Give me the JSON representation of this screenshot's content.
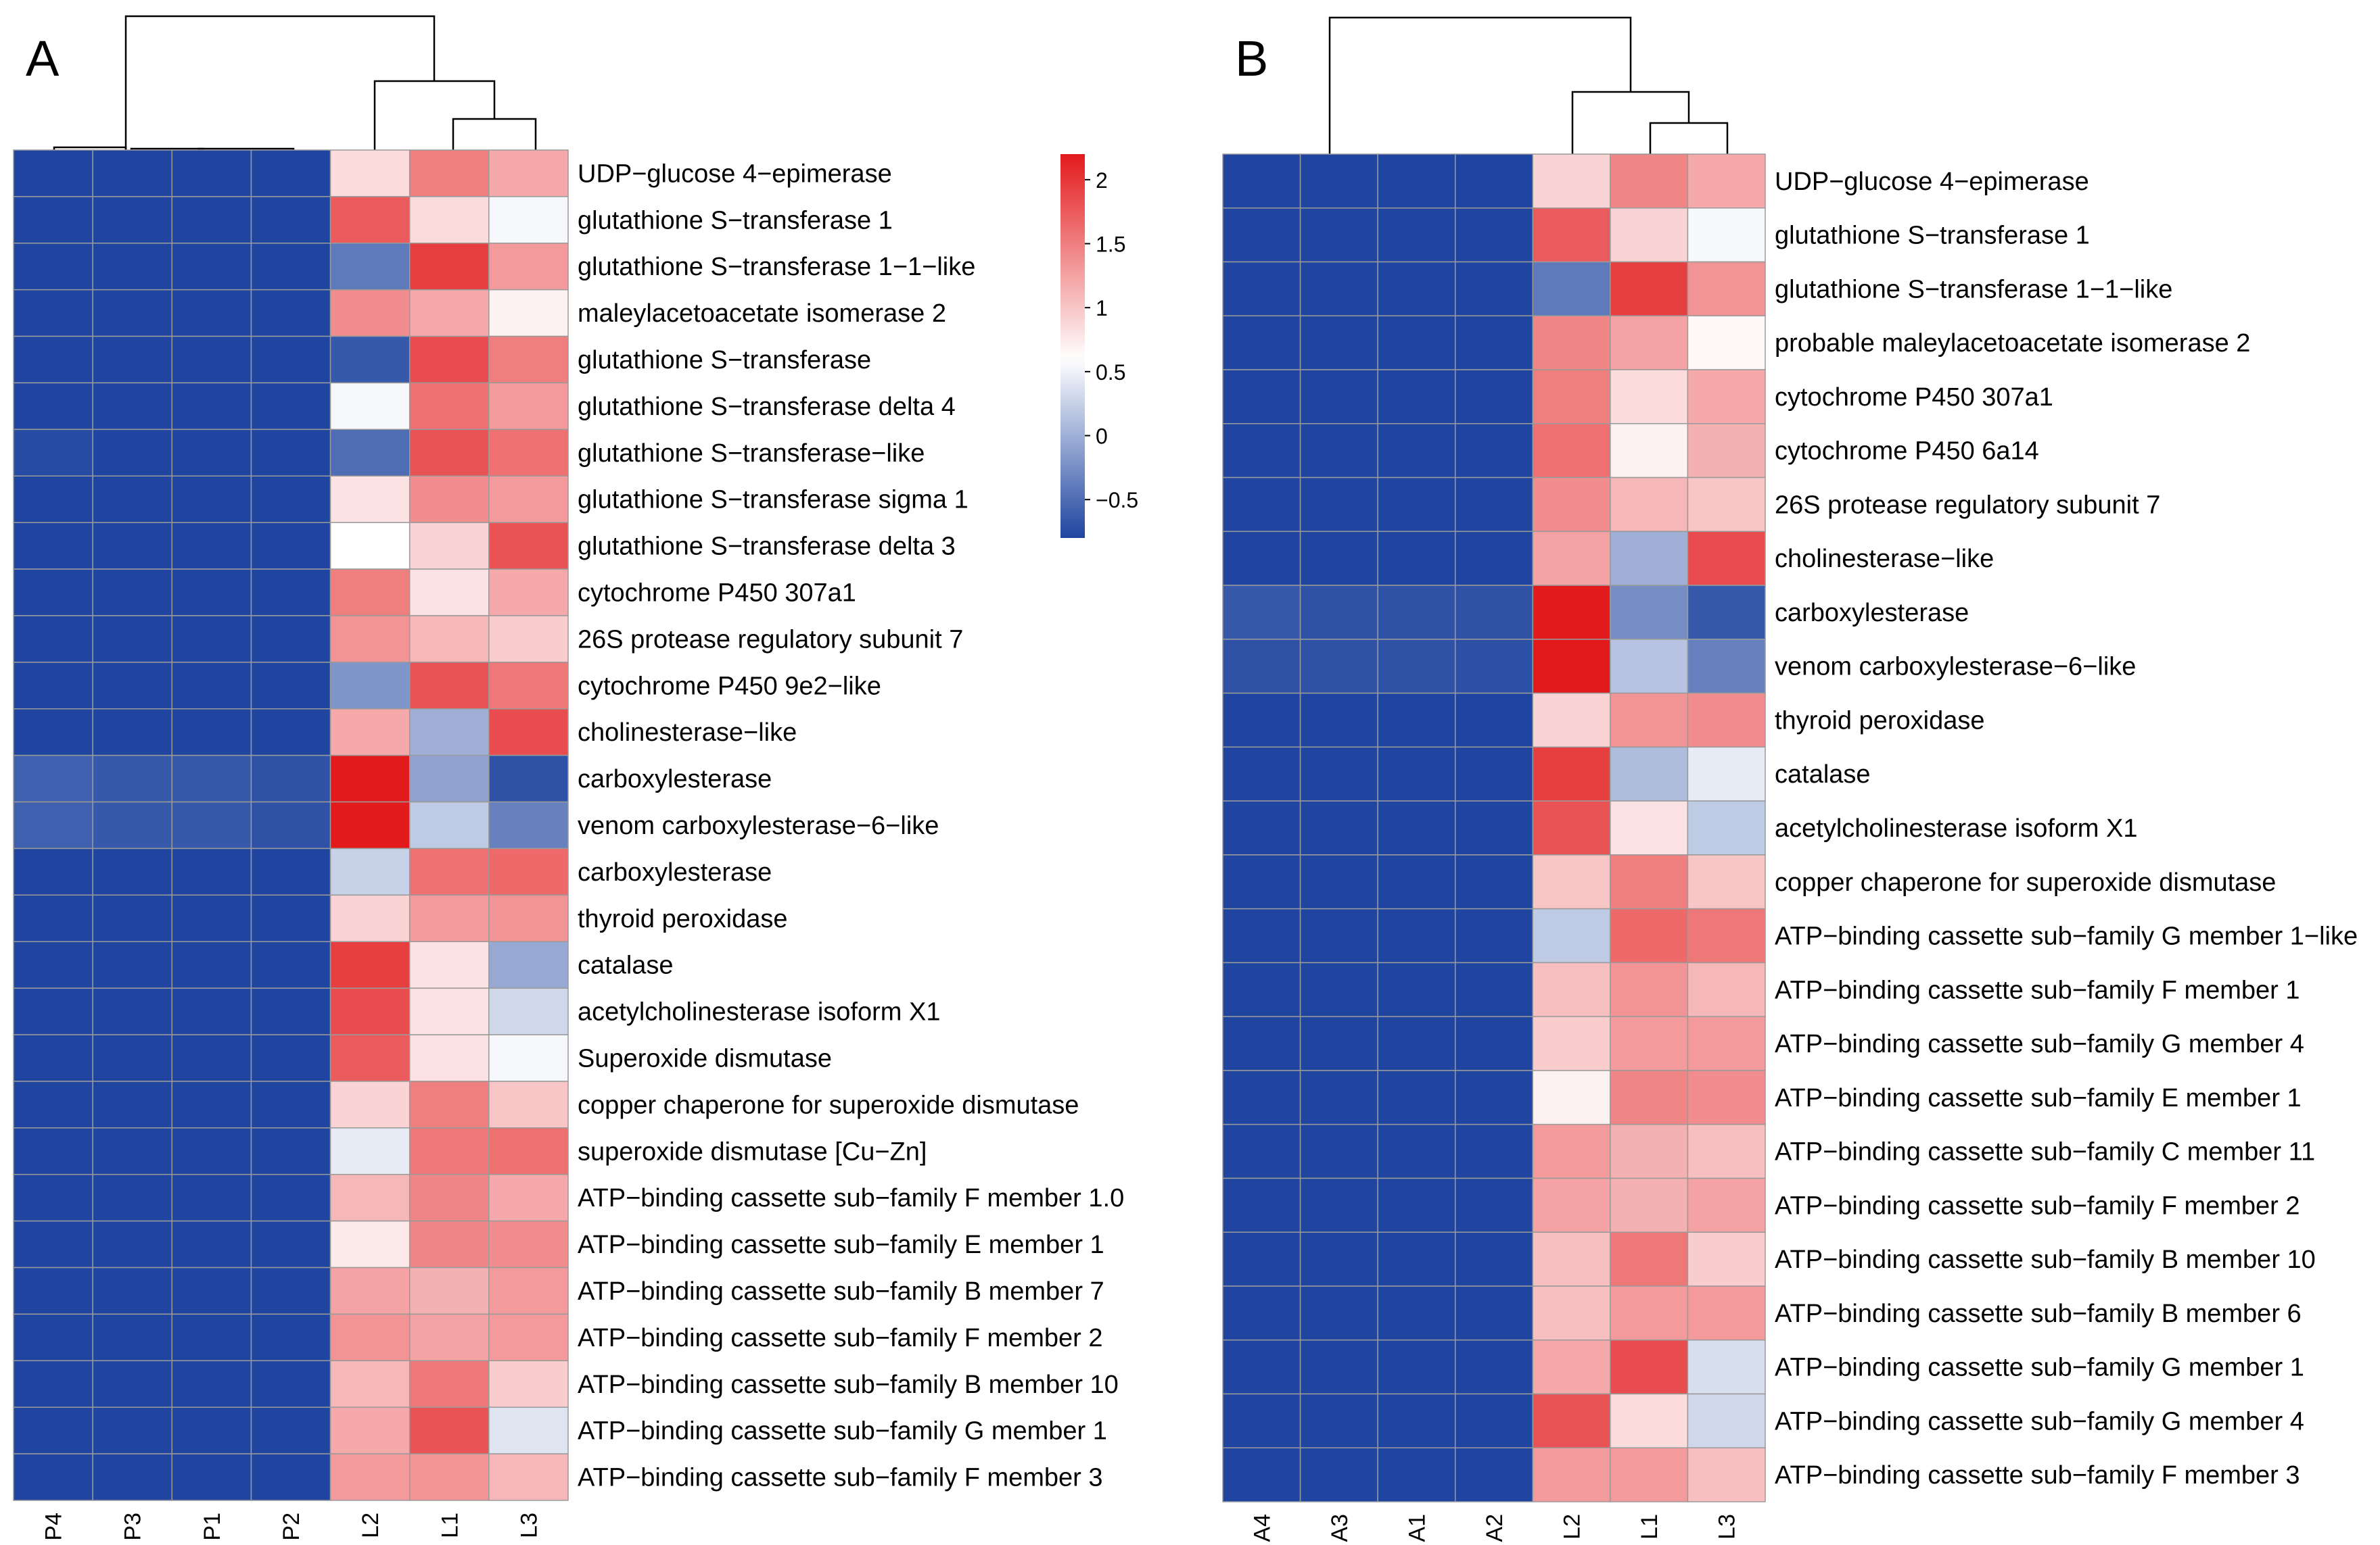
{
  "chart_data": [
    {
      "type": "heatmap",
      "panel_label": "A",
      "columns": [
        "P4",
        "P3",
        "P1",
        "P2",
        "L2",
        "L1",
        "L3"
      ],
      "rows": [
        "UDP−glucose 4−epimerase",
        "glutathione S−transferase 1",
        "glutathione S−transferase 1−1−like",
        "maleylacetoacetate isomerase 2",
        "glutathione S−transferase",
        "glutathione S−transferase delta 4",
        "glutathione S−transferase−like",
        "glutathione S−transferase sigma 1",
        "glutathione S−transferase delta 3",
        "cytochrome P450 307a1",
        "26S protease regulatory subunit 7",
        "cytochrome P450 9e2−like",
        "cholinesterase−like",
        "carboxylesterase",
        "venom carboxylesterase−6−like",
        "carboxylesterase",
        "thyroid peroxidase",
        "catalase",
        "acetylcholinesterase isoform X1",
        "Superoxide dismutase",
        "copper chaperone for superoxide dismutase",
        "superoxide dismutase [Cu−Zn]",
        "ATP−binding cassette sub−family F member 1.0",
        "ATP−binding cassette sub−family E member 1",
        "ATP−binding cassette sub−family B member 7",
        "ATP−binding cassette sub−family F member 2",
        "ATP−binding cassette sub−family B member 10",
        "ATP−binding cassette sub−family G member 1",
        "ATP−binding cassette sub−family F member 3"
      ],
      "values": [
        [
          -0.8,
          -0.8,
          -0.8,
          -0.8,
          0.85,
          1.5,
          1.2
        ],
        [
          -0.8,
          -0.8,
          -0.8,
          -0.8,
          1.75,
          0.85,
          0.55
        ],
        [
          -0.8,
          -0.8,
          -0.8,
          -0.8,
          -0.4,
          1.95,
          1.3
        ],
        [
          -0.8,
          -0.8,
          -0.8,
          -0.8,
          1.4,
          1.2,
          0.7
        ],
        [
          -0.8,
          -0.8,
          -0.8,
          -0.8,
          -0.65,
          1.85,
          1.5
        ],
        [
          -0.8,
          -0.8,
          -0.8,
          -0.8,
          0.55,
          1.6,
          1.3
        ],
        [
          -0.75,
          -0.8,
          -0.8,
          -0.8,
          -0.5,
          1.8,
          1.6
        ],
        [
          -0.8,
          -0.8,
          -0.8,
          -0.8,
          0.8,
          1.4,
          1.3
        ],
        [
          -0.8,
          -0.8,
          -0.8,
          -0.8,
          0.6,
          0.9,
          1.8
        ],
        [
          -0.8,
          -0.8,
          -0.8,
          -0.8,
          1.5,
          0.8,
          1.2
        ],
        [
          -0.8,
          -0.8,
          -0.8,
          -0.8,
          1.35,
          1.1,
          0.95
        ],
        [
          -0.8,
          -0.8,
          -0.8,
          -0.8,
          -0.2,
          1.8,
          1.55
        ],
        [
          -0.8,
          -0.8,
          -0.8,
          -0.8,
          1.2,
          0.0,
          1.85
        ],
        [
          -0.6,
          -0.65,
          -0.65,
          -0.7,
          2.2,
          -0.1,
          -0.7
        ],
        [
          -0.6,
          -0.65,
          -0.65,
          -0.7,
          2.2,
          0.2,
          -0.35
        ],
        [
          -0.8,
          -0.8,
          -0.8,
          -0.8,
          0.25,
          1.6,
          1.65
        ],
        [
          -0.8,
          -0.8,
          -0.8,
          -0.8,
          0.9,
          1.3,
          1.35
        ],
        [
          -0.8,
          -0.8,
          -0.8,
          -0.8,
          1.95,
          0.8,
          -0.05
        ],
        [
          -0.8,
          -0.8,
          -0.8,
          -0.8,
          1.85,
          0.8,
          0.3
        ],
        [
          -0.8,
          -0.8,
          -0.8,
          -0.8,
          1.75,
          0.8,
          0.55
        ],
        [
          -0.8,
          -0.8,
          -0.8,
          -0.8,
          0.9,
          1.5,
          1.0
        ],
        [
          -0.8,
          -0.8,
          -0.8,
          -0.8,
          0.45,
          1.55,
          1.6
        ],
        [
          -0.8,
          -0.8,
          -0.8,
          -0.8,
          1.1,
          1.45,
          1.2
        ],
        [
          -0.8,
          -0.8,
          -0.8,
          -0.8,
          0.75,
          1.45,
          1.4
        ],
        [
          -0.8,
          -0.8,
          -0.8,
          -0.8,
          1.25,
          1.15,
          1.3
        ],
        [
          -0.8,
          -0.8,
          -0.8,
          -0.8,
          1.35,
          1.25,
          1.3
        ],
        [
          -0.8,
          -0.8,
          -0.8,
          -0.8,
          1.1,
          1.55,
          0.95
        ],
        [
          -0.8,
          -0.8,
          -0.8,
          -0.8,
          1.2,
          1.8,
          0.4
        ],
        [
          -0.8,
          -0.8,
          -0.8,
          -0.8,
          1.3,
          1.35,
          1.1
        ]
      ],
      "color_scale": {
        "min": -0.8,
        "mid": 0.6,
        "max": 2.2,
        "low": "#1f45a0",
        "middle": "#ffffff",
        "high": "#e31a1c"
      },
      "legend": {
        "ticks": [
          "2",
          "1.5",
          "1",
          "0.5",
          "0",
          "−0.5"
        ],
        "tick_values": [
          2,
          1.5,
          1,
          0.5,
          0,
          -0.5
        ]
      }
    },
    {
      "type": "heatmap",
      "panel_label": "B",
      "columns": [
        "A4",
        "A3",
        "A1",
        "A2",
        "L2",
        "L1",
        "L3"
      ],
      "rows": [
        "UDP−glucose 4−epimerase",
        "glutathione S−transferase 1",
        "glutathione S−transferase 1−1−like",
        "probable maleylacetoacetate isomerase 2",
        "cytochrome P450 307a1",
        "cytochrome P450 6a14",
        "26S protease regulatory subunit 7",
        "cholinesterase−like",
        "carboxylesterase",
        "venom carboxylesterase−6−like",
        "thyroid peroxidase",
        "catalase",
        "acetylcholinesterase isoform X1",
        "copper chaperone for superoxide dismutase",
        "ATP−binding cassette sub−family G member 1−like",
        "ATP−binding cassette sub−family F member 1",
        "ATP−binding cassette sub−family G member 4",
        "ATP−binding cassette sub−family E member 1",
        "ATP−binding cassette sub−family C member 11",
        "ATP−binding cassette sub−family F member 2",
        "ATP−binding cassette sub−family B member 10",
        "ATP−binding cassette sub−family B member 6",
        "ATP−binding cassette sub−family G member 1",
        "ATP−binding cassette sub−family G member 4",
        "ATP−binding cassette sub−family F member 3"
      ],
      "values": [
        [
          -0.8,
          -0.8,
          -0.8,
          -0.8,
          0.9,
          1.45,
          1.2
        ],
        [
          -0.8,
          -0.8,
          -0.8,
          -0.8,
          1.75,
          0.9,
          0.55
        ],
        [
          -0.8,
          -0.8,
          -0.8,
          -0.8,
          -0.4,
          1.95,
          1.35
        ],
        [
          -0.8,
          -0.8,
          -0.8,
          -0.8,
          1.45,
          1.25,
          0.65
        ],
        [
          -0.8,
          -0.8,
          -0.8,
          -0.8,
          1.5,
          0.85,
          1.2
        ],
        [
          -0.8,
          -0.8,
          -0.8,
          -0.8,
          1.6,
          0.7,
          1.15
        ],
        [
          -0.8,
          -0.8,
          -0.8,
          -0.8,
          1.4,
          1.1,
          1.0
        ],
        [
          -0.8,
          -0.8,
          -0.8,
          -0.8,
          1.25,
          0.0,
          1.85
        ],
        [
          -0.65,
          -0.7,
          -0.7,
          -0.7,
          2.2,
          -0.25,
          -0.65
        ],
        [
          -0.7,
          -0.7,
          -0.7,
          -0.72,
          2.2,
          0.15,
          -0.35
        ],
        [
          -0.8,
          -0.8,
          -0.8,
          -0.8,
          0.9,
          1.35,
          1.4
        ],
        [
          -0.8,
          -0.8,
          -0.8,
          -0.8,
          1.95,
          0.1,
          0.45
        ],
        [
          -0.8,
          -0.8,
          -0.8,
          -0.8,
          1.8,
          0.8,
          0.2
        ],
        [
          -0.8,
          -0.8,
          -0.8,
          -0.8,
          1.0,
          1.5,
          1.0
        ],
        [
          -0.8,
          -0.8,
          -0.8,
          -0.8,
          0.2,
          1.65,
          1.55
        ],
        [
          -0.8,
          -0.8,
          -0.8,
          -0.8,
          1.05,
          1.35,
          1.1
        ],
        [
          -0.8,
          -0.8,
          -0.8,
          -0.8,
          0.95,
          1.3,
          1.3
        ],
        [
          -0.8,
          -0.8,
          -0.8,
          -0.8,
          0.7,
          1.45,
          1.4
        ],
        [
          -0.8,
          -0.8,
          -0.8,
          -0.8,
          1.3,
          1.15,
          1.05
        ],
        [
          -0.8,
          -0.8,
          -0.8,
          -0.8,
          1.25,
          1.15,
          1.25
        ],
        [
          -0.8,
          -0.8,
          -0.8,
          -0.8,
          1.05,
          1.55,
          0.95
        ],
        [
          -0.8,
          -0.8,
          -0.8,
          -0.8,
          1.05,
          1.3,
          1.3
        ],
        [
          -0.8,
          -0.8,
          -0.8,
          -0.8,
          1.2,
          1.85,
          0.35
        ],
        [
          -0.8,
          -0.8,
          -0.8,
          -0.8,
          1.8,
          0.85,
          0.3
        ],
        [
          -0.8,
          -0.8,
          -0.8,
          -0.8,
          1.3,
          1.3,
          1.05
        ]
      ],
      "color_scale": {
        "min": -0.8,
        "mid": 0.6,
        "max": 2.2,
        "low": "#1f45a0",
        "middle": "#ffffff",
        "high": "#e31a1c"
      }
    }
  ]
}
